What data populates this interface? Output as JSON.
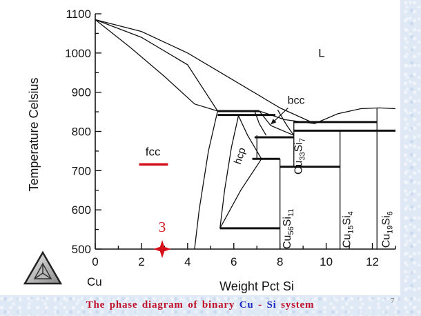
{
  "chart_data": {
    "type": "line",
    "ylabel": "Temperature Celsius",
    "xlabel": "Weight Pct Si",
    "xlim": [
      0,
      13
    ],
    "ylim": [
      500,
      1100
    ],
    "x_ticks": [
      0,
      2,
      4,
      6,
      8,
      10,
      12
    ],
    "y_ticks": [
      500,
      600,
      700,
      800,
      900,
      1000,
      1100
    ],
    "x_minor_step": 1,
    "y_minor_step": 50,
    "grid": false,
    "origin_element": "Cu",
    "regions": {
      "liquid": "L",
      "fcc": "fcc",
      "hcp": "hcp",
      "bcc": "bcc",
      "cu33si7": {
        "base": "Cu",
        "s1": "33",
        "mid": "Si",
        "s2": "7"
      },
      "cu56si11": {
        "base": "Cu",
        "s1": "56",
        "mid": "Si",
        "s2": "11"
      },
      "cu15si4": {
        "base": "Cu",
        "s1": "15",
        "mid": "Si",
        "s2": "4"
      },
      "cu19si6": {
        "base": "Cu",
        "s1": "19",
        "mid": "Si",
        "s2": "6"
      }
    },
    "annotations": {
      "marker_label": "3",
      "marker_point": [
        2.9,
        500
      ]
    },
    "lines": {
      "liquidus_fcc": [
        [
          0,
          1085
        ],
        [
          2,
          1040
        ],
        [
          4,
          970
        ],
        [
          5.3,
          852
        ]
      ],
      "solidus_fcc": [
        [
          0,
          1085
        ],
        [
          1.5,
          1015
        ],
        [
          3,
          940
        ],
        [
          4.3,
          870
        ],
        [
          5.3,
          852
        ]
      ],
      "liquidus_upper": [
        [
          0,
          1085
        ],
        [
          2,
          1055
        ],
        [
          4,
          1000
        ],
        [
          6,
          930
        ],
        [
          8,
          860
        ],
        [
          9.5,
          820
        ]
      ],
      "liquidus_right": [
        [
          9.5,
          820
        ],
        [
          10.5,
          845
        ],
        [
          11.5,
          858
        ],
        [
          12.3,
          860
        ],
        [
          13,
          858
        ]
      ],
      "fcc_solvus": [
        [
          5.3,
          852
        ],
        [
          4.9,
          750
        ],
        [
          4.5,
          600
        ],
        [
          4.3,
          500
        ]
      ],
      "hcp_left": [
        [
          6.2,
          840
        ],
        [
          5.9,
          760
        ],
        [
          5.6,
          650
        ],
        [
          5.4,
          553
        ]
      ],
      "hcp_right": [
        [
          6.2,
          840
        ],
        [
          6.6,
          790
        ],
        [
          7.2,
          730
        ]
      ],
      "hcp_lower_right": [
        [
          5.4,
          553
        ],
        [
          6.3,
          650
        ],
        [
          7.2,
          730
        ]
      ],
      "bcc_left": [
        [
          6.9,
          852
        ],
        [
          7.1,
          820
        ],
        [
          7.4,
          790
        ]
      ],
      "bcc_right": [
        [
          7.1,
          852
        ],
        [
          7.6,
          815
        ],
        [
          8.6,
          790
        ]
      ],
      "bcc_top": [
        [
          7.1,
          852
        ],
        [
          8.2,
          830
        ],
        [
          9.5,
          820
        ]
      ],
      "cu33si7_left": [
        [
          7.9,
          855
        ],
        [
          8.3,
          815
        ],
        [
          8.6,
          790
        ]
      ]
    },
    "thick_isotherms": [
      {
        "y": 852,
        "x": [
          5.3,
          7.1
        ]
      },
      {
        "y": 842,
        "x": [
          5.3,
          7.8
        ]
      },
      {
        "y": 824,
        "x": [
          8.6,
          12.2
        ]
      },
      {
        "y": 802,
        "x": [
          8.6,
          13
        ]
      },
      {
        "y": 785,
        "x": [
          6.9,
          8.6
        ]
      },
      {
        "y": 730,
        "x": [
          6.8,
          8.0
        ]
      },
      {
        "y": 710,
        "x": [
          8.0,
          10.6
        ]
      },
      {
        "y": 553,
        "x": [
          5.4,
          8.0
        ]
      }
    ],
    "verticals": [
      {
        "x": 8.0,
        "y": [
          500,
          730
        ]
      },
      {
        "x": 8.6,
        "y": [
          710,
          828
        ]
      },
      {
        "x": 10.6,
        "y": [
          500,
          802
        ]
      },
      {
        "x": 12.2,
        "y": [
          500,
          860
        ]
      },
      {
        "x": 7.0,
        "y": [
          730,
          790
        ]
      }
    ]
  },
  "caption": {
    "part1": "The phase diagram of binary",
    "element1": "Cu",
    "separator": "-",
    "element2": "Si",
    "part2": "system"
  },
  "page_number": "7",
  "colors": {
    "caption_text": "#c0102a",
    "caption_elements": "#1c2bbf",
    "marker": "#d6101a",
    "fcc_underline": "#d6101a"
  }
}
